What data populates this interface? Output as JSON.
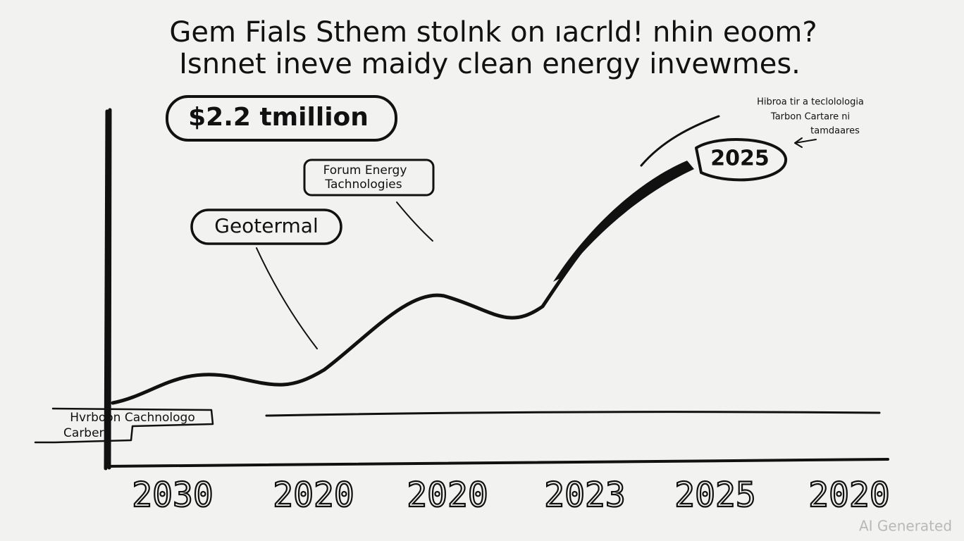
{
  "title": {
    "lines": [
      "Gem Fials Sthem stolnk on ıacrld! nhin eoom?",
      "Isnnet ineve maidy clean energy invewmes."
    ]
  },
  "callouts": {
    "amount": "$2.2 tmillion",
    "forum": [
      "Forum Energy",
      "Tachnologies"
    ],
    "geothermal": "Geotermal",
    "peak": "2025",
    "note": [
      "Hibroa tir a teclolologia",
      "Tarbon Cartare ni",
      "tamdaares"
    ],
    "left": [
      "Hvrboon Cachnologo",
      "Carbera"
    ]
  },
  "x_labels": [
    "2030",
    "2020",
    "2020",
    "2023",
    "2025",
    "2020"
  ],
  "watermark": "AI Generated"
}
